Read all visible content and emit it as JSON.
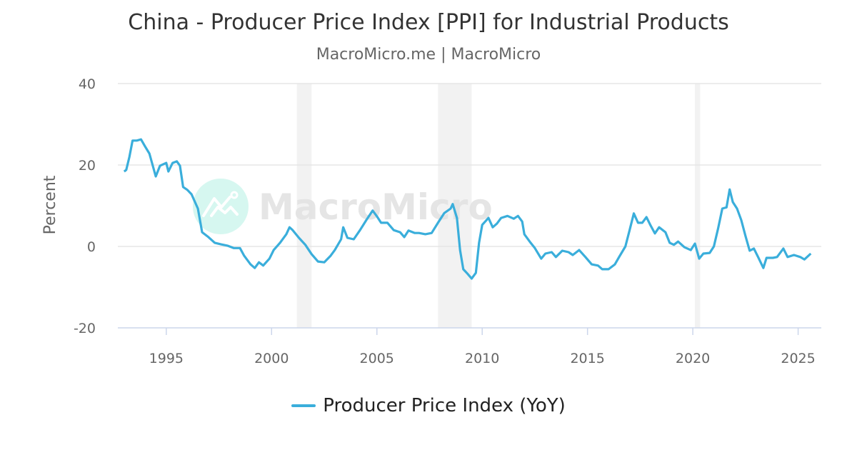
{
  "chart_data": {
    "type": "line",
    "title": "China - Producer Price Index [PPI] for Industrial Products",
    "subtitle": "MacroMicro.me | MacroMicro",
    "xlabel": "",
    "ylabel": "Percent",
    "xlim": [
      1992.7,
      2026.1
    ],
    "ylim": [
      -20,
      40
    ],
    "x_ticks": [
      "1995",
      "2000",
      "2005",
      "2010",
      "2015",
      "2020",
      "2025"
    ],
    "y_ticks": [
      "40",
      "20",
      "0",
      "-20"
    ],
    "grid": "horizontal",
    "legend_position": "bottom",
    "shaded_periods": [
      [
        2001.2,
        2001.9
      ],
      [
        2007.9,
        2009.5
      ],
      [
        2020.1,
        2020.35
      ]
    ],
    "watermark": "MacroMicro",
    "series": [
      {
        "name": "Producer Price Index (YoY)",
        "color": "#3aaedb",
        "x": [
          1993.0,
          1993.1,
          1993.25,
          1993.4,
          1993.6,
          1993.8,
          1994.0,
          1994.2,
          1994.5,
          1994.7,
          1995.0,
          1995.1,
          1995.3,
          1995.5,
          1995.65,
          1995.8,
          1996.0,
          1996.2,
          1996.5,
          1996.7,
          1997.0,
          1997.3,
          1997.6,
          1997.9,
          1998.2,
          1998.5,
          1998.7,
          1999.0,
          1999.2,
          1999.4,
          1999.6,
          1999.9,
          2000.1,
          2000.4,
          2000.7,
          2000.85,
          2001.0,
          2001.3,
          2001.6,
          2001.9,
          2002.2,
          2002.5,
          2002.8,
          2003.0,
          2003.3,
          2003.4,
          2003.6,
          2003.9,
          2004.2,
          2004.5,
          2004.8,
          2005.0,
          2005.2,
          2005.5,
          2005.8,
          2006.1,
          2006.3,
          2006.5,
          2006.8,
          2007.0,
          2007.3,
          2007.6,
          2007.9,
          2008.2,
          2008.5,
          2008.6,
          2008.8,
          2008.95,
          2009.1,
          2009.3,
          2009.5,
          2009.7,
          2009.85,
          2010.0,
          2010.3,
          2010.5,
          2010.7,
          2010.9,
          2011.2,
          2011.5,
          2011.7,
          2011.9,
          2012.0,
          2012.3,
          2012.5,
          2012.8,
          2013.0,
          2013.3,
          2013.5,
          2013.8,
          2014.1,
          2014.3,
          2014.6,
          2014.9,
          2015.2,
          2015.5,
          2015.7,
          2016.0,
          2016.3,
          2016.5,
          2016.8,
          2017.0,
          2017.2,
          2017.4,
          2017.6,
          2017.8,
          2018.0,
          2018.2,
          2018.4,
          2018.7,
          2018.9,
          2019.1,
          2019.3,
          2019.6,
          2019.9,
          2020.1,
          2020.3,
          2020.5,
          2020.8,
          2021.0,
          2021.2,
          2021.4,
          2021.6,
          2021.75,
          2021.9,
          2022.1,
          2022.3,
          2022.5,
          2022.7,
          2022.9,
          2023.1,
          2023.35,
          2023.5,
          2023.8,
          2024.0,
          2024.3,
          2024.5,
          2024.8,
          2025.1,
          2025.3,
          2025.6
        ],
        "values": [
          18.4,
          18.8,
          22.0,
          26.0,
          26.0,
          26.3,
          24.5,
          22.8,
          17.2,
          19.8,
          20.5,
          18.4,
          20.5,
          20.9,
          19.8,
          14.6,
          13.9,
          12.8,
          9.3,
          3.5,
          2.3,
          0.9,
          0.5,
          0.2,
          -0.4,
          -0.4,
          -2.3,
          -4.4,
          -5.3,
          -3.9,
          -4.7,
          -3.0,
          -0.9,
          0.9,
          3.0,
          4.7,
          4.0,
          2.1,
          0.4,
          -1.9,
          -3.7,
          -3.9,
          -2.3,
          -0.9,
          1.75,
          4.7,
          2.1,
          1.75,
          4.0,
          6.5,
          8.8,
          7.4,
          5.8,
          5.8,
          4.0,
          3.5,
          2.3,
          3.9,
          3.3,
          3.3,
          3.0,
          3.3,
          5.8,
          8.2,
          9.3,
          10.4,
          7.0,
          -0.9,
          -5.6,
          -6.7,
          -7.9,
          -6.5,
          0.9,
          5.3,
          7.0,
          4.7,
          5.6,
          7.0,
          7.5,
          6.8,
          7.5,
          6.1,
          3.0,
          0.9,
          -0.4,
          -3.0,
          -1.75,
          -1.4,
          -2.6,
          -1.05,
          -1.4,
          -2.1,
          -0.9,
          -2.6,
          -4.4,
          -4.7,
          -5.6,
          -5.6,
          -4.4,
          -2.6,
          0.0,
          4.0,
          8.1,
          5.8,
          5.8,
          7.2,
          5.1,
          3.2,
          4.7,
          3.5,
          0.9,
          0.4,
          1.2,
          -0.2,
          -0.9,
          0.7,
          -3.0,
          -1.75,
          -1.6,
          0.0,
          4.4,
          9.3,
          9.6,
          14.0,
          10.9,
          9.3,
          6.5,
          2.6,
          -1.05,
          -0.5,
          -2.6,
          -5.3,
          -2.8,
          -2.8,
          -2.6,
          -0.5,
          -2.6,
          -2.1,
          -2.6,
          -3.2,
          -1.75
        ]
      }
    ]
  },
  "colors": {
    "shade": "#f2f2f2",
    "grid": "#e6e6e6",
    "axis": "#ccd6eb",
    "watermark_circle": "#d6f7f0",
    "watermark_text": "#e3e3e3"
  }
}
